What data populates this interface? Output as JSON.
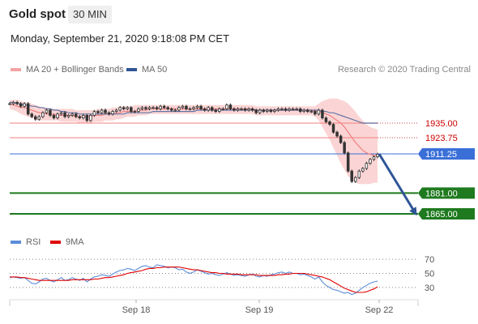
{
  "header": {
    "instrument": "Gold spot",
    "timeframe": "30 MIN",
    "datetime": "Monday, September 21, 2020 9:18:08 PM CET"
  },
  "legend": {
    "ma20_label": "MA 20 + Bollinger Bands",
    "ma50_label": "MA 50",
    "rsi_label": "RSI",
    "rsi_ma_label": "9MA",
    "credit": "Research © 2020 Trading Central"
  },
  "colors": {
    "ma20": "#f08080",
    "bollinger_fill": "#fbd5d5",
    "ma50": "#2f5597",
    "candle": "#333333",
    "resistance": "#f08080",
    "resistance_text": "#cc0000",
    "pivot": "#3a6fd8",
    "support": "#1f7a1f",
    "arrow": "#2f5597",
    "rsi": "#5b8dd9",
    "rsi_ma": "#e00000"
  },
  "chart_data": [
    {
      "type": "line",
      "name_hint": "price",
      "x_ticks": [
        "Sep 18",
        "Sep 19",
        "Sep 22"
      ],
      "y_range": [
        1855,
        1960
      ],
      "levels": [
        {
          "value": 1935.0,
          "label": "1935.00",
          "kind": "resistance"
        },
        {
          "value": 1923.75,
          "label": "1923.75",
          "kind": "resistance"
        },
        {
          "value": 1911.25,
          "label": "1911.25",
          "kind": "pivot"
        },
        {
          "value": 1881.0,
          "label": "1881.00",
          "kind": "support"
        },
        {
          "value": 1865.0,
          "label": "1865.00",
          "kind": "support"
        }
      ],
      "close": [
        1950,
        1951,
        1950,
        1948,
        1950,
        1942,
        1940,
        1938,
        1940,
        1943,
        1945,
        1941,
        1939,
        1942,
        1943,
        1940,
        1941,
        1942,
        1940,
        1939,
        1941,
        1937,
        1941,
        1944,
        1943,
        1945,
        1943,
        1942,
        1944,
        1945,
        1947,
        1946,
        1947,
        1944,
        1944,
        1946,
        1947,
        1946,
        1947,
        1947,
        1946,
        1948,
        1947,
        1946,
        1945,
        1945,
        1947,
        1948,
        1946,
        1946,
        1947,
        1948,
        1946,
        1945,
        1947,
        1945,
        1944,
        1946,
        1946,
        1949,
        1946,
        1945,
        1946,
        1946,
        1945,
        1946,
        1945,
        1943,
        1945,
        1944,
        1945,
        1944,
        1945,
        1946,
        1946,
        1945,
        1946,
        1946,
        1946,
        1944,
        1945,
        1944,
        1944,
        1942,
        1945,
        1939,
        1936,
        1934,
        1928,
        1925,
        1920,
        1912,
        1898,
        1890,
        1893,
        1898,
        1900,
        1904,
        1907,
        1909,
        1911
      ],
      "ma20": [
        1950,
        1949,
        1948,
        1947,
        1947,
        1946,
        1945,
        1944,
        1943,
        1943,
        1942,
        1942,
        1942,
        1941,
        1941,
        1941,
        1941,
        1941,
        1940,
        1940,
        1940,
        1940,
        1940,
        1941,
        1941,
        1941,
        1942,
        1942,
        1942,
        1943,
        1943,
        1944,
        1944,
        1944,
        1944,
        1945,
        1945,
        1945,
        1946,
        1946,
        1946,
        1946,
        1946,
        1946,
        1946,
        1946,
        1946,
        1946,
        1946,
        1946,
        1946,
        1946,
        1946,
        1946,
        1946,
        1946,
        1946,
        1946,
        1946,
        1946,
        1946,
        1946,
        1946,
        1946,
        1946,
        1946,
        1946,
        1945,
        1945,
        1945,
        1945,
        1945,
        1945,
        1945,
        1945,
        1945,
        1945,
        1945,
        1945,
        1945,
        1945,
        1945,
        1945,
        1944,
        1944,
        1943,
        1942,
        1941,
        1939,
        1937,
        1935,
        1932,
        1928,
        1924,
        1920,
        1917,
        1914,
        1912,
        1911,
        1910,
        1910
      ],
      "ma50": [
        1951,
        1951,
        1950,
        1950,
        1949,
        1949,
        1948,
        1948,
        1947,
        1947,
        1946,
        1946,
        1945,
        1945,
        1944,
        1944,
        1943,
        1943,
        1943,
        1942,
        1942,
        1942,
        1942,
        1942,
        1942,
        1942,
        1942,
        1942,
        1942,
        1942,
        1942,
        1942,
        1943,
        1943,
        1943,
        1943,
        1943,
        1943,
        1943,
        1944,
        1944,
        1944,
        1944,
        1944,
        1944,
        1944,
        1944,
        1944,
        1944,
        1944,
        1944,
        1945,
        1945,
        1945,
        1945,
        1945,
        1945,
        1945,
        1945,
        1945,
        1945,
        1945,
        1945,
        1945,
        1945,
        1945,
        1945,
        1945,
        1945,
        1945,
        1945,
        1945,
        1945,
        1945,
        1945,
        1945,
        1945,
        1945,
        1945,
        1945,
        1945,
        1945,
        1945,
        1945,
        1945,
        1944,
        1944,
        1943,
        1943,
        1942,
        1941,
        1940,
        1939,
        1938,
        1937,
        1936,
        1935,
        1935,
        1935,
        1935,
        1935
      ],
      "boll_upper": [
        1953,
        1953,
        1953,
        1952,
        1951,
        1951,
        1950,
        1949,
        1948,
        1947,
        1947,
        1946,
        1946,
        1946,
        1946,
        1946,
        1946,
        1946,
        1945,
        1945,
        1945,
        1945,
        1945,
        1945,
        1946,
        1946,
        1946,
        1946,
        1947,
        1947,
        1948,
        1948,
        1948,
        1948,
        1949,
        1949,
        1949,
        1949,
        1949,
        1949,
        1949,
        1949,
        1949,
        1949,
        1949,
        1949,
        1949,
        1949,
        1949,
        1949,
        1949,
        1949,
        1949,
        1949,
        1949,
        1949,
        1949,
        1949,
        1949,
        1949,
        1949,
        1949,
        1949,
        1949,
        1949,
        1949,
        1949,
        1948,
        1948,
        1948,
        1948,
        1948,
        1948,
        1948,
        1948,
        1948,
        1948,
        1948,
        1948,
        1948,
        1948,
        1948,
        1948,
        1948,
        1950,
        1952,
        1953,
        1954,
        1954,
        1954,
        1953,
        1952,
        1950,
        1947,
        1944,
        1940,
        1937,
        1934,
        1932,
        1931,
        1930
      ],
      "boll_lower": [
        1946,
        1945,
        1944,
        1942,
        1941,
        1940,
        1939,
        1938,
        1937,
        1937,
        1937,
        1937,
        1937,
        1937,
        1936,
        1936,
        1936,
        1936,
        1936,
        1935,
        1935,
        1935,
        1935,
        1936,
        1936,
        1936,
        1937,
        1937,
        1937,
        1938,
        1938,
        1939,
        1940,
        1940,
        1940,
        1941,
        1941,
        1941,
        1942,
        1942,
        1942,
        1942,
        1942,
        1942,
        1942,
        1942,
        1942,
        1942,
        1942,
        1942,
        1942,
        1942,
        1942,
        1942,
        1942,
        1942,
        1942,
        1942,
        1942,
        1942,
        1942,
        1942,
        1942,
        1942,
        1942,
        1942,
        1942,
        1941,
        1941,
        1941,
        1941,
        1941,
        1941,
        1941,
        1941,
        1941,
        1941,
        1941,
        1941,
        1941,
        1941,
        1941,
        1941,
        1940,
        1937,
        1932,
        1927,
        1922,
        1916,
        1910,
        1904,
        1899,
        1894,
        1891,
        1889,
        1888,
        1888,
        1888,
        1888,
        1889,
        1889
      ],
      "projection": {
        "from": 1911.25,
        "to": 1865.0
      }
    },
    {
      "type": "line",
      "name_hint": "rsi",
      "x_ticks": [
        "Sep 18",
        "Sep 19",
        "Sep 22"
      ],
      "y_range": [
        15,
        85
      ],
      "levels": [
        70,
        50,
        30
      ],
      "level_labels": [
        "70",
        "50",
        "30"
      ],
      "rsi": [
        44,
        45,
        44,
        43,
        44,
        40,
        36,
        35,
        38,
        42,
        43,
        40,
        38,
        41,
        44,
        40,
        41,
        44,
        42,
        40,
        43,
        38,
        42,
        45,
        46,
        48,
        47,
        46,
        49,
        52,
        54,
        55,
        57,
        56,
        54,
        57,
        60,
        61,
        59,
        58,
        62,
        61,
        60,
        58,
        59,
        58,
        55,
        56,
        52,
        50,
        52,
        55,
        53,
        51,
        49,
        50,
        48,
        47,
        49,
        51,
        49,
        47,
        48,
        47,
        46,
        48,
        49,
        46,
        45,
        47,
        46,
        48,
        49,
        51,
        52,
        50,
        52,
        50,
        50,
        48,
        49,
        47,
        45,
        42,
        45,
        38,
        33,
        30,
        27,
        26,
        24,
        22,
        23,
        20,
        22,
        26,
        30,
        33,
        36,
        38,
        39
      ],
      "rsi_ma": [
        45,
        45,
        45,
        44,
        44,
        43,
        42,
        41,
        40,
        40,
        40,
        40,
        40,
        40,
        40,
        40,
        40,
        41,
        41,
        41,
        41,
        41,
        41,
        42,
        42,
        43,
        44,
        44,
        45,
        46,
        47,
        48,
        50,
        51,
        52,
        53,
        54,
        56,
        57,
        57,
        58,
        58,
        59,
        59,
        59,
        59,
        59,
        58,
        57,
        56,
        55,
        55,
        54,
        53,
        52,
        51,
        51,
        50,
        50,
        49,
        49,
        49,
        49,
        48,
        48,
        48,
        48,
        48,
        47,
        47,
        47,
        47,
        47,
        48,
        48,
        49,
        49,
        50,
        50,
        50,
        50,
        49,
        48,
        47,
        46,
        45,
        43,
        41,
        38,
        35,
        32,
        29,
        27,
        25,
        23,
        23,
        23,
        24,
        26,
        28,
        31
      ]
    }
  ]
}
